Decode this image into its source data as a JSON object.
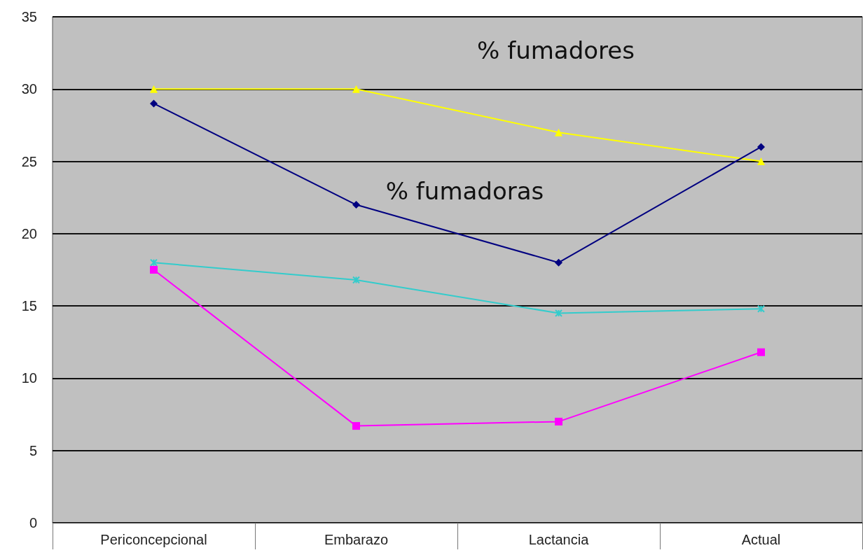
{
  "chart_data": {
    "type": "line",
    "categories": [
      "Periconcepcional",
      "Embarazo",
      "Lactancia",
      "Actual"
    ],
    "ylim": [
      0,
      35
    ],
    "yticks": [
      0,
      5,
      10,
      15,
      20,
      25,
      30,
      35
    ],
    "grid": "y",
    "legend": false,
    "series": [
      {
        "name": "% fumadores",
        "color": "#ffff00",
        "marker": "triangle",
        "values": [
          30,
          30,
          27,
          25
        ]
      },
      {
        "name": "% fumadoras",
        "color": "#000080",
        "marker": "diamond",
        "values": [
          29,
          22,
          18,
          26
        ]
      },
      {
        "color": "#33cccc",
        "marker": "cross",
        "values": [
          18,
          16.8,
          14.5,
          14.8
        ]
      },
      {
        "color": "#ff00ff",
        "marker": "square",
        "values": [
          17.5,
          6.7,
          7,
          11.8
        ]
      }
    ]
  }
}
